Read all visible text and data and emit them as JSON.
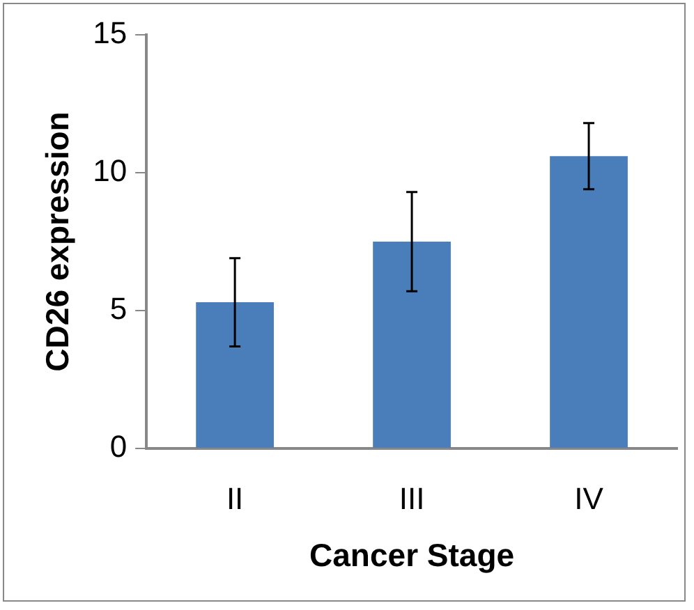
{
  "chart_data": {
    "type": "bar",
    "xlabel": "Cancer Stage",
    "ylabel": "CD26 expression",
    "categories": [
      "II",
      "III",
      "IV"
    ],
    "series": [
      {
        "color": "#4a7ebb",
        "values": [
          5.3,
          7.5,
          10.6
        ],
        "errors": [
          1.6,
          1.8,
          1.2
        ]
      }
    ],
    "ylim": [
      0,
      15
    ],
    "yticks": [
      0,
      5,
      10,
      15
    ],
    "grid": false,
    "legend": false
  }
}
